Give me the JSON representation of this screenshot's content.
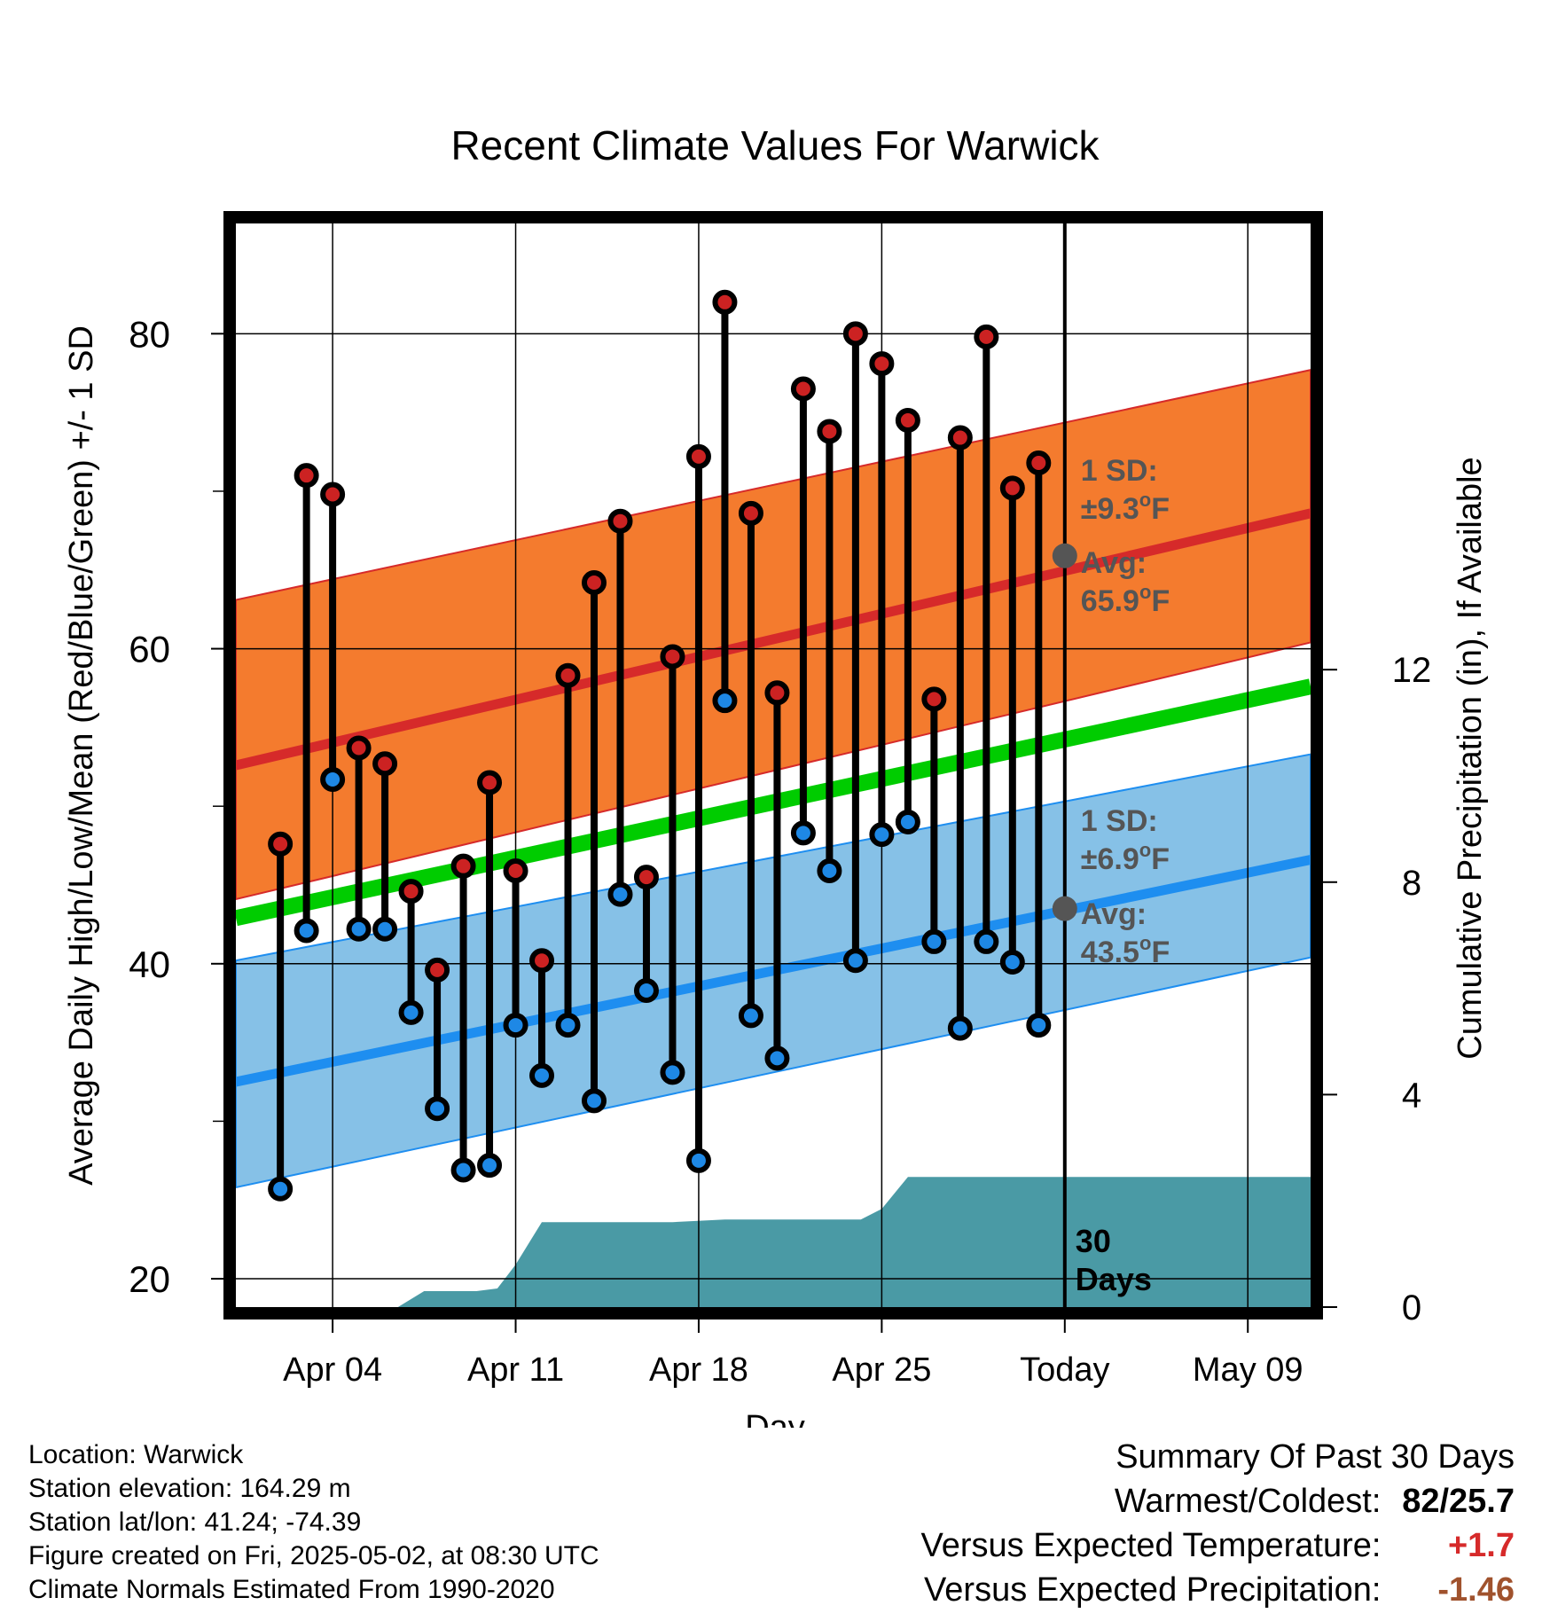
{
  "chart_data": {
    "type": "line",
    "title": "Recent Climate Values For Warwick",
    "xlabel": "Day",
    "ylabel": "Average Daily High/Low/Mean (Red/Blue/Green) +/- 1 SD",
    "y2label": "Cumulative Precipitation (in), If Available",
    "ylim": [
      18.2,
      87
    ],
    "y2lim": [
      0,
      20.4
    ],
    "yticks": [
      "20",
      "40",
      "60",
      "80"
    ],
    "y2ticks": [
      "0",
      "4",
      "8",
      "12"
    ],
    "x_tick_labels": [
      "Apr 04",
      "Apr 11",
      "Apr 18",
      "Apr 25",
      "Today",
      "May 09"
    ],
    "x_tick_days": [
      4,
      11,
      18,
      25,
      32,
      39
    ],
    "xlim": [
      0.3,
      41.4
    ],
    "today_day": 32,
    "daily_observations": {
      "days": [
        2,
        3,
        4,
        5,
        6,
        7,
        8,
        9,
        10,
        11,
        12,
        13,
        14,
        15,
        16,
        17,
        18,
        19,
        20,
        21,
        22,
        23,
        24,
        25,
        26,
        27,
        28,
        29,
        30,
        31
      ],
      "high": [
        47.6,
        71.0,
        69.8,
        53.7,
        52.7,
        44.6,
        39.6,
        46.2,
        51.5,
        45.9,
        40.2,
        58.3,
        64.2,
        68.1,
        45.5,
        59.5,
        72.2,
        82.0,
        68.6,
        57.2,
        76.5,
        73.8,
        80.0,
        78.1,
        74.5,
        56.8,
        73.4,
        79.8,
        70.2,
        71.8
      ],
      "low": [
        25.7,
        42.1,
        51.7,
        42.2,
        42.2,
        36.9,
        30.8,
        26.9,
        27.2,
        36.1,
        32.9,
        36.1,
        31.3,
        44.4,
        38.3,
        33.1,
        27.5,
        56.7,
        36.7,
        34.0,
        48.3,
        45.9,
        40.2,
        48.2,
        49.0,
        41.4,
        35.9,
        41.4,
        40.1,
        36.1
      ]
    },
    "normals": {
      "start_day": 0.3,
      "end_day": 41.4,
      "high_avg": [
        52.6,
        68.6
      ],
      "high_sd_upper": [
        63.1,
        77.7
      ],
      "high_sd_lower": [
        44.1,
        60.4
      ],
      "mean_avg": [
        42.9,
        57.6
      ],
      "low_avg": [
        32.5,
        46.6
      ],
      "low_sd_upper": [
        40.2,
        53.3
      ],
      "low_sd_lower": [
        25.8,
        40.4
      ]
    },
    "precipitation": {
      "days": [
        0.3,
        3.5,
        4.7,
        6.5,
        7.5,
        9.5,
        10.3,
        11.0,
        12.0,
        13.0,
        17.0,
        19.0,
        21.0,
        23.0,
        24.2,
        25.0,
        26.0,
        30.0,
        41.4
      ],
      "values": [
        0,
        0,
        0,
        0,
        0.3,
        0.3,
        0.35,
        0.8,
        1.6,
        1.6,
        1.6,
        1.65,
        1.65,
        1.65,
        1.65,
        1.85,
        2.45,
        2.45,
        2.45
      ]
    },
    "annotations": {
      "high_sd_label": "1 SD:",
      "high_sd_value": "±9.3",
      "high_avg_label": "Avg:",
      "high_avg_value": "65.9",
      "low_sd_label": "1 SD:",
      "low_sd_value": "±6.9",
      "low_avg_label": "Avg:",
      "low_avg_value": "43.5",
      "unit_sup": "o",
      "unit_letter": "F",
      "precip_days_number": "30",
      "precip_days_word": "Days"
    },
    "grid": true,
    "colors": {
      "high_band": "#f47b2e",
      "high_line": "#d62a2a",
      "low_band": "#86c1e7",
      "low_line": "#1e8ef0",
      "mean_line": "#00cc00",
      "precip": "#4a9aa5",
      "high_marker": "#cc2222",
      "low_marker": "#1e88e5",
      "annotation": "#555555"
    }
  },
  "footer": {
    "location": "Location: Warwick",
    "elevation": "Station elevation: 164.29 m",
    "latlon": "Station lat/lon: 41.24; -74.39",
    "created": "Figure created on Fri, 2025-05-02, at 08:30 UTC",
    "normals": "Climate Normals Estimated From 1990-2020"
  },
  "summary": {
    "title": "Summary Of Past 30 Days",
    "warm_cold_label": "Warmest/Coldest:",
    "warm_cold_value": "82/25.7",
    "temp_label": "Versus Expected Temperature:",
    "temp_value": "+1.7",
    "temp_color": "#d62a2a",
    "precip_label": "Versus Expected Precipitation:",
    "precip_value": "-1.46",
    "precip_color": "#a0522d"
  }
}
